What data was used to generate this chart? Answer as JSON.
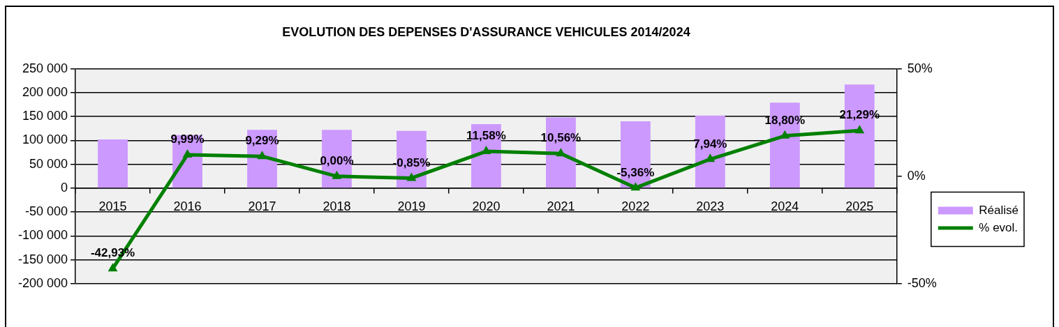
{
  "chart_data": {
    "type": "bar",
    "title": "EVOLUTION DES DEPENSES D'ASSURANCE VEHICULES 2014/2024",
    "categories": [
      "2015",
      "2016",
      "2017",
      "2018",
      "2019",
      "2020",
      "2021",
      "2022",
      "2023",
      "2024",
      "2025"
    ],
    "series": [
      {
        "name": "Réalisé",
        "color": "#cc99ff",
        "values": [
          102000,
          111000,
          122000,
          122000,
          120000,
          134000,
          148000,
          140000,
          152000,
          179000,
          217000
        ]
      },
      {
        "name": "% evol.",
        "type": "line",
        "axis": "y2",
        "color": "#008000",
        "values": [
          -42.93,
          9.99,
          9.29,
          0.0,
          -0.85,
          11.58,
          10.56,
          -5.36,
          7.94,
          18.8,
          21.29
        ],
        "value_labels": [
          "-42,93%",
          "9,99%",
          "9,29%",
          "0,00%",
          "-0,85%",
          "11,58%",
          "10,56%",
          "-5,36%",
          "7,94%",
          "18,80%",
          "21,29%"
        ]
      }
    ],
    "ylim": [
      -200000,
      250000
    ],
    "yticks": [
      {
        "value": -200000,
        "label": "-200 000"
      },
      {
        "value": -150000,
        "label": "-150 000"
      },
      {
        "value": -100000,
        "label": "-100 000"
      },
      {
        "value": -50000,
        "label": "-50 000"
      },
      0,
      {
        "value": 50000,
        "label": "50 000"
      },
      {
        "value": 100000,
        "label": "100 000"
      },
      {
        "value": 150000,
        "label": "150 000"
      },
      {
        "value": 200000,
        "label": "200 000"
      },
      {
        "value": 250000,
        "label": "250 000"
      }
    ],
    "y2lim": [
      -50,
      50
    ],
    "y2ticks": [
      {
        "value": -50,
        "label": "-50%"
      },
      {
        "value": 0,
        "label": "0%"
      },
      {
        "value": 50,
        "label": "50%"
      }
    ],
    "grid": "y",
    "legend": "right",
    "marker": "triangle"
  }
}
